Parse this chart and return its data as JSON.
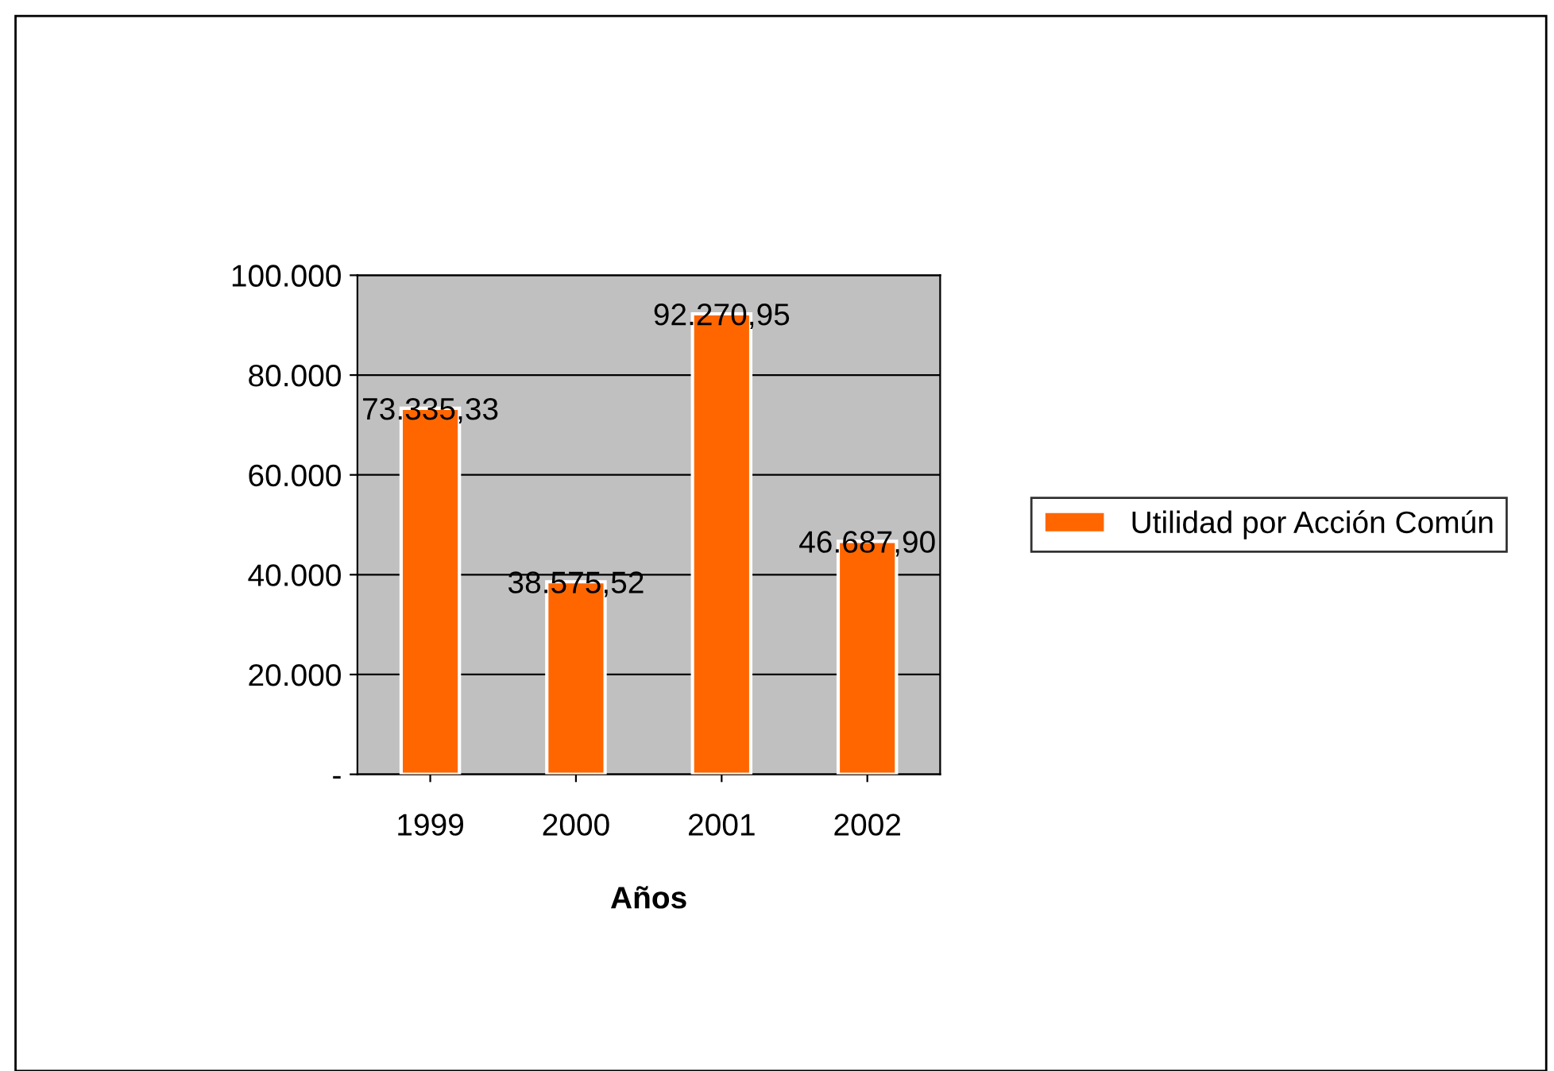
{
  "chart_data": {
    "type": "bar",
    "xlabel": "Años",
    "categories": [
      "1999",
      "2000",
      "2001",
      "2002"
    ],
    "series": [
      {
        "name": "Utilidad por Acción Común",
        "color": "#ff6600",
        "values": [
          73335.33,
          38575.52,
          92270.95,
          46687.9
        ],
        "value_labels": [
          "73.335,33",
          "38.575,52",
          "92.270,95",
          "46.687,90"
        ]
      }
    ],
    "ylim": [
      0,
      100000
    ],
    "yticks": [
      {
        "value": 0,
        "label": "-"
      },
      {
        "value": 20000,
        "label": "20.000"
      },
      {
        "value": 40000,
        "label": "40.000"
      },
      {
        "value": 60000,
        "label": "60.000"
      },
      {
        "value": 80000,
        "label": "80.000"
      },
      {
        "value": 100000,
        "label": "100.000"
      }
    ],
    "grid": "y",
    "legend": "right"
  }
}
